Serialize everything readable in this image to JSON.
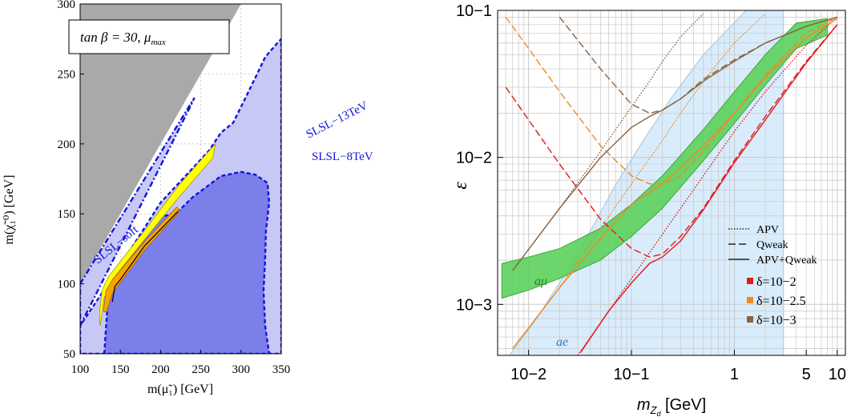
{
  "figure": {
    "colors": {
      "excluded_gray": "#a9a9a9",
      "light_blue_region": "#c7c8f5",
      "dark_blue_region": "#7c7ee9",
      "dashed_blue": "#1414dc",
      "yellow": "#ffff00",
      "orange": "#f6a400",
      "gm2_green": "#5cd05c",
      "ae_blue": "#d9ecfb",
      "delta_red": "#e11a1a",
      "delta_orange": "#ee8a1e",
      "delta_brown": "#8b6240"
    }
  },
  "chart_data": [
    {
      "type": "area",
      "title": "",
      "xlabel": "m(μ̃₁) [GeV]",
      "ylabel": "m(χ̃₁⁰) [GeV]",
      "xlim": [
        100,
        350
      ],
      "ylim": [
        50,
        300
      ],
      "xticks": [
        "100",
        "150",
        "200",
        "250",
        "300",
        "350"
      ],
      "yticks": [
        "50",
        "100",
        "150",
        "200",
        "250",
        "300"
      ],
      "grid": true,
      "annotation_box": "tan β = 30,  μ",
      "annotation_sub": "max",
      "labels": [
        "SLSL−13TeV",
        "SLSL−8TeV",
        "SLSL−soft"
      ],
      "regions": [
        {
          "name": "excluded (mχ > mμ̃)",
          "color": "gray",
          "polygon": [
            [
              100,
              100
            ],
            [
              300,
              300
            ],
            [
              100,
              300
            ]
          ]
        },
        {
          "name": "SLSL-13TeV",
          "color": "light blue",
          "polygon": [
            [
              100,
              50
            ],
            [
              100,
              70
            ],
            [
              150,
              113
            ],
            [
              200,
              158
            ],
            [
              260,
              195
            ],
            [
              275,
              208
            ],
            [
              290,
              215
            ],
            [
              303,
              230
            ],
            [
              320,
              250
            ],
            [
              330,
              262
            ],
            [
              345,
              272
            ],
            [
              350,
              275
            ],
            [
              350,
              50
            ]
          ]
        },
        {
          "name": "SLSL-8TeV",
          "color": "blue",
          "polygon": [
            [
              130,
              50
            ],
            [
              135,
              92
            ],
            [
              147,
              101
            ],
            [
              152,
              104
            ],
            [
              153,
              118
            ],
            [
              160,
              121
            ],
            [
              175,
              131
            ],
            [
              200,
              147
            ],
            [
              224,
              153
            ],
            [
              240,
              162
            ],
            [
              275,
              177
            ],
            [
              300,
              180
            ],
            [
              318,
              178
            ],
            [
              333,
              172
            ],
            [
              335,
              158
            ],
            [
              331,
              138
            ],
            [
              330,
              118
            ],
            [
              328,
              95
            ],
            [
              330,
              70
            ],
            [
              335,
              50
            ]
          ]
        },
        {
          "name": "SLSL-soft",
          "color": "light blue",
          "polygon": [
            [
              100,
              100
            ],
            [
              242,
              233
            ],
            [
              238,
              228
            ],
            [
              100,
              70
            ]
          ]
        },
        {
          "name": "yellow band",
          "polygon": [
            [
              124,
              78
            ],
            [
              127,
              95
            ],
            [
              135,
              105
            ],
            [
              180,
              138
            ],
            [
              222,
              170
            ],
            [
              268,
              200
            ],
            [
              265,
              190
            ],
            [
              220,
              160
            ],
            [
              175,
              128
            ],
            [
              140,
              103
            ],
            [
              130,
              90
            ],
            [
              125,
              70
            ]
          ]
        },
        {
          "name": "orange band",
          "polygon": [
            [
              129,
              80
            ],
            [
              132,
              95
            ],
            [
              140,
              103
            ],
            [
              180,
              130
            ],
            [
              220,
              155
            ],
            [
              224,
              152
            ],
            [
              180,
              124
            ],
            [
              140,
              93
            ],
            [
              133,
              80
            ]
          ]
        }
      ],
      "line": {
        "name": "black contour",
        "x": [
          140,
          143,
          150,
          180,
          222
        ],
        "y": [
          87,
          98,
          103,
          127,
          152
        ]
      }
    },
    {
      "type": "line",
      "title": "",
      "xlabel": "m_{Z_d} [GeV]",
      "ylabel": "ε",
      "xscale": "log",
      "yscale": "log",
      "xlim": [
        0.005,
        12
      ],
      "ylim": [
        0.00045,
        0.1
      ],
      "xticks": [
        "10−2",
        "10−1",
        "1",
        "5",
        "10"
      ],
      "yticks": [
        "10−3",
        "10−2",
        "10−1"
      ],
      "grid": true,
      "legend_styles": [
        "APV",
        "Qweak",
        "APV+Qweak"
      ],
      "legend_colors": [
        "δ=10−2",
        "δ=10−2.5",
        "δ=10−3"
      ],
      "band_labels": [
        "aμ",
        "ae"
      ],
      "bands": [
        {
          "name": "a_mu",
          "x": [
            0.0055,
            0.01,
            0.02,
            0.05,
            0.1,
            0.2,
            0.5,
            1,
            2,
            4,
            8
          ],
          "upper": [
            0.0019,
            0.0021,
            0.0024,
            0.0033,
            0.0048,
            0.0075,
            0.0155,
            0.028,
            0.05,
            0.082,
            0.088
          ],
          "lower": [
            0.0011,
            0.00125,
            0.0015,
            0.002,
            0.0029,
            0.0045,
            0.0095,
            0.017,
            0.031,
            0.055,
            0.068
          ]
        },
        {
          "name": "a_e",
          "x": [
            0.0065,
            0.012,
            0.03,
            0.07,
            0.13,
            0.25,
            0.5,
            1.3,
            3
          ],
          "upper": [
            0.00045,
            0.0008,
            0.0022,
            0.0065,
            0.013,
            0.026,
            0.05,
            0.1,
            0.1
          ],
          "lower": [
            0.00045,
            0.00045,
            0.00045,
            0.00045,
            0.00045,
            0.00045,
            0.00045,
            0.00045,
            0.00045
          ]
        }
      ],
      "series": [
        {
          "name": "APV δ=10−2",
          "color": "red",
          "style": "dotted",
          "x": [
            0.03,
            0.06,
            0.1,
            0.2,
            0.5,
            1,
            2,
            5,
            10
          ],
          "y": [
            0.00045,
            0.0009,
            0.0015,
            0.003,
            0.0075,
            0.015,
            0.028,
            0.058,
            0.09
          ]
        },
        {
          "name": "Qweak δ=10−2",
          "color": "red",
          "style": "dashed",
          "x": [
            0.006,
            0.02,
            0.05,
            0.1,
            0.15,
            0.2,
            0.3,
            0.5,
            1,
            2,
            5,
            10
          ],
          "y": [
            0.03,
            0.009,
            0.0038,
            0.0024,
            0.0021,
            0.0022,
            0.0029,
            0.0045,
            0.0095,
            0.019,
            0.045,
            0.08
          ]
        },
        {
          "name": "APV+Qweak δ=10−2",
          "color": "red",
          "style": "solid",
          "x": [
            0.032,
            0.06,
            0.1,
            0.15,
            0.2,
            0.3,
            0.5,
            1,
            2,
            5,
            10
          ],
          "y": [
            0.00047,
            0.0009,
            0.0014,
            0.0019,
            0.0021,
            0.0027,
            0.0044,
            0.0092,
            0.018,
            0.044,
            0.08
          ]
        },
        {
          "name": "APV δ=10−2.5",
          "color": "orange",
          "style": "dotted",
          "x": [
            0.007,
            0.02,
            0.05,
            0.1,
            0.2,
            0.3,
            0.5,
            1,
            2
          ],
          "y": [
            0.0005,
            0.0013,
            0.0033,
            0.0066,
            0.013,
            0.02,
            0.033,
            0.06,
            0.095
          ]
        },
        {
          "name": "Qweak δ=10−2.5",
          "color": "orange",
          "style": "dashed",
          "x": [
            0.006,
            0.01,
            0.02,
            0.05,
            0.1,
            0.15,
            0.2,
            0.3,
            0.5,
            1,
            2,
            5,
            10
          ],
          "y": [
            0.09,
            0.055,
            0.028,
            0.012,
            0.0075,
            0.0066,
            0.0066,
            0.0075,
            0.011,
            0.02,
            0.036,
            0.07,
            0.09
          ]
        },
        {
          "name": "APV+Qweak δ=10−2.5",
          "color": "orange",
          "style": "solid",
          "x": [
            0.007,
            0.02,
            0.05,
            0.1,
            0.2,
            0.3,
            0.5,
            1,
            2,
            5,
            10
          ],
          "y": [
            0.0005,
            0.0013,
            0.0028,
            0.0048,
            0.0066,
            0.0085,
            0.012,
            0.02,
            0.035,
            0.065,
            0.088
          ]
        },
        {
          "name": "APV δ=10−3",
          "color": "brown",
          "style": "dotted",
          "x": [
            0.007,
            0.02,
            0.05,
            0.1,
            0.15,
            0.2,
            0.3,
            0.5
          ],
          "y": [
            0.0017,
            0.0045,
            0.011,
            0.022,
            0.033,
            0.045,
            0.066,
            0.095
          ]
        },
        {
          "name": "Qweak δ=10−3",
          "color": "brown",
          "style": "dashed",
          "x": [
            0.02,
            0.05,
            0.1,
            0.15,
            0.2,
            0.3,
            0.5,
            1,
            2,
            5,
            10
          ],
          "y": [
            0.09,
            0.04,
            0.023,
            0.02,
            0.021,
            0.025,
            0.034,
            0.046,
            0.06,
            0.078,
            0.09
          ]
        },
        {
          "name": "APV+Qweak δ=10−3",
          "color": "brown",
          "style": "solid",
          "x": [
            0.007,
            0.02,
            0.05,
            0.1,
            0.15,
            0.2,
            0.3,
            0.5,
            1,
            2,
            5,
            10
          ],
          "y": [
            0.0017,
            0.0045,
            0.01,
            0.016,
            0.019,
            0.021,
            0.025,
            0.033,
            0.045,
            0.06,
            0.078,
            0.09
          ]
        }
      ]
    }
  ]
}
